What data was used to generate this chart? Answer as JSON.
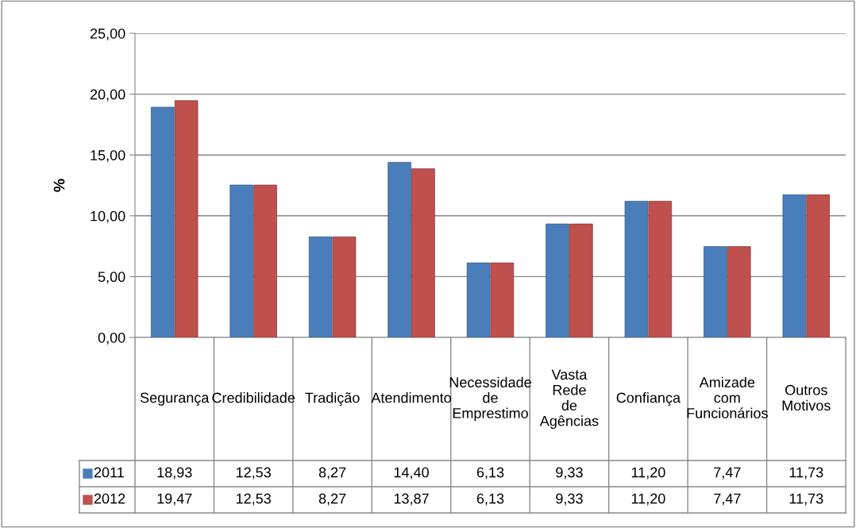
{
  "chart_data": {
    "type": "bar",
    "ylabel": "%",
    "categories": [
      "Segurança",
      "Credibilidade",
      "Tradição",
      "Atendimento",
      "Necessidade de Emprestimo",
      "Vasta Rede de Agências",
      "Confiança",
      "Amizade com Funcionários",
      "Outros Motivos"
    ],
    "series": [
      {
        "name": "2011",
        "color": "#4a7ebb",
        "values": [
          18.93,
          12.53,
          8.27,
          14.4,
          6.13,
          9.33,
          11.2,
          7.47,
          11.73
        ],
        "value_labels": [
          "18,93",
          "12,53",
          "8,27",
          "14,40",
          "6,13",
          "9,33",
          "11,20",
          "7,47",
          "11,73"
        ]
      },
      {
        "name": "2012",
        "color": "#c0504d",
        "values": [
          19.47,
          12.53,
          8.27,
          13.87,
          6.13,
          9.33,
          11.2,
          7.47,
          11.73
        ],
        "value_labels": [
          "19,47",
          "12,53",
          "8,27",
          "13,87",
          "6,13",
          "9,33",
          "11,20",
          "7,47",
          "11,73"
        ]
      }
    ],
    "ylim": [
      0,
      25
    ],
    "yticks": [
      {
        "value": 0,
        "label": "0,00"
      },
      {
        "value": 5,
        "label": "5,00"
      },
      {
        "value": 10,
        "label": "10,00"
      },
      {
        "value": 15,
        "label": "15,00"
      },
      {
        "value": 20,
        "label": "20,00"
      },
      {
        "value": 25,
        "label": "25,00"
      }
    ],
    "grid": "y",
    "legend": "bottom left"
  }
}
